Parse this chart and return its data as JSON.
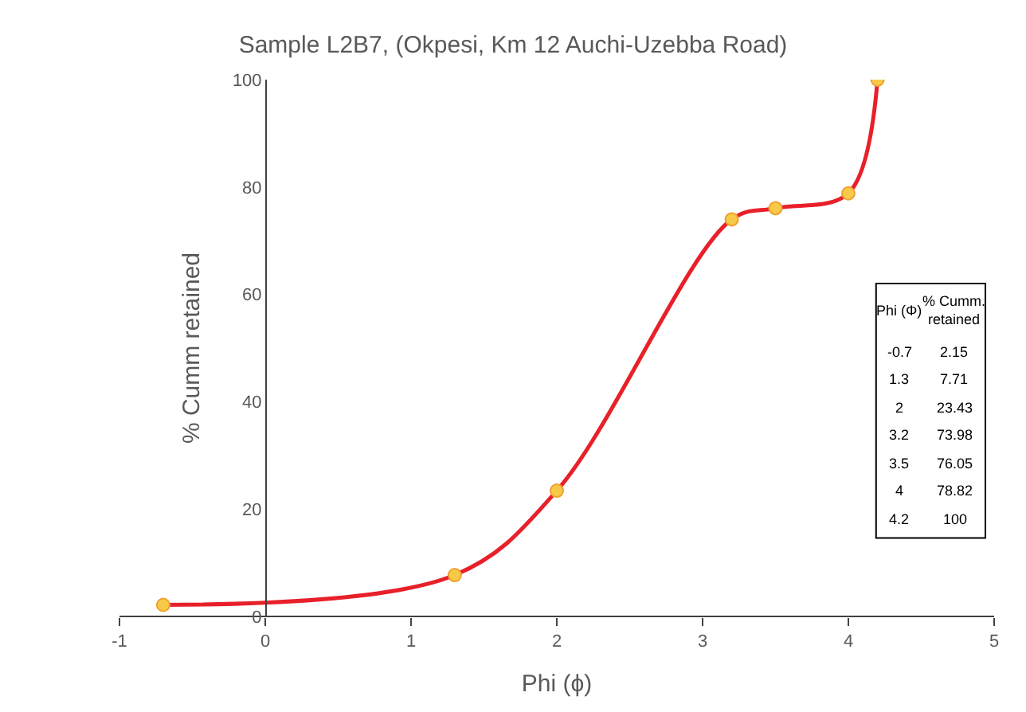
{
  "chart_data": [
    {
      "type": "line",
      "title": "Sample L2B7, (Okpesi, Km 12 Auchi-Uzebba Road)",
      "xlabel": "Phi (ϕ)",
      "ylabel": "% Cumm retained",
      "x": [
        -0.7,
        1.3,
        2,
        3.2,
        3.5,
        4,
        4.2
      ],
      "series": [
        {
          "color": "#e8202a",
          "values": [
            2.15,
            7.71,
            23.43,
            73.98,
            76.05,
            78.82,
            100
          ]
        }
      ],
      "marker": "circle",
      "line_style": "solid",
      "legend": false,
      "xlim": [
        -1,
        5
      ],
      "xticks": [
        -1,
        0,
        1,
        2,
        3,
        4,
        5
      ],
      "ylim": [
        0,
        100
      ],
      "yticks": [
        0,
        20,
        40,
        60,
        80,
        100
      ]
    },
    {
      "type": "other",
      "annotations": [
        "Phi (Φ)",
        "% Cumm. retained",
        "-0.7",
        "2.15",
        "1.3",
        "7.71",
        "2",
        "23.43",
        "3.2",
        "73.98",
        "3.5",
        "76.05",
        "4",
        "78.82",
        "4.2",
        "100"
      ]
    }
  ]
}
